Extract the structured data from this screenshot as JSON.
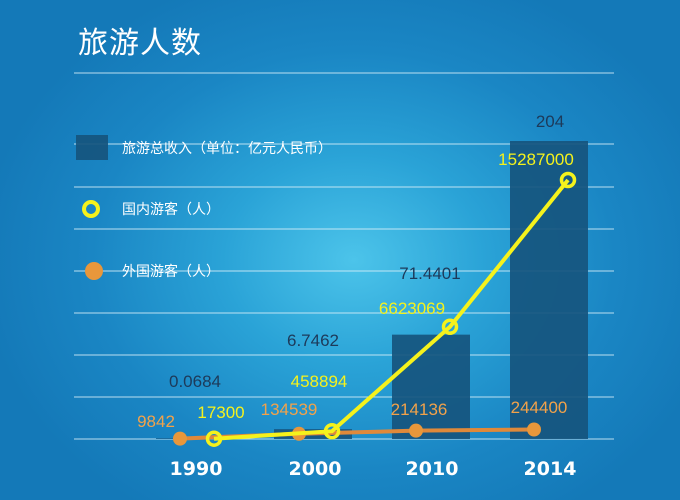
{
  "title": "旅游人数",
  "chart_data": {
    "type": "bar",
    "categories": [
      "1990",
      "2000",
      "2010",
      "2014"
    ],
    "series": [
      {
        "name": "旅游总收入（单位：亿元人民币）",
        "kind": "bar",
        "values": [
          0.0684,
          6.7462,
          71.4401,
          204
        ],
        "labels": [
          "0.0684",
          "6.7462",
          "71.4401",
          "204"
        ],
        "color": "#16557e"
      },
      {
        "name": "国内游客（人）",
        "kind": "line",
        "values": [
          17300,
          458894,
          6623069,
          15287000
        ],
        "labels": [
          "17300",
          "458894",
          "6623069",
          "15287000"
        ],
        "color": "#f5f21c"
      },
      {
        "name": "外国游客（人）",
        "kind": "line",
        "values": [
          9842,
          134539,
          214136,
          244400
        ],
        "labels": [
          "9842",
          "134539",
          "214136",
          "244400"
        ],
        "color": "#e8973b"
      }
    ],
    "grid": true,
    "legend_position": "left"
  }
}
